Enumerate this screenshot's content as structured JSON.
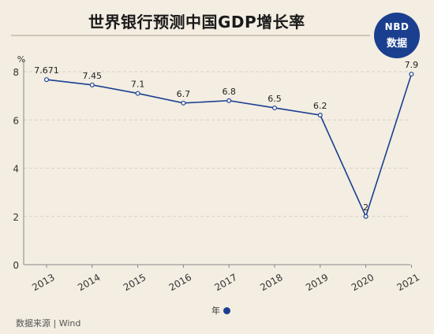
{
  "header": {
    "title": "世界银行预测中国GDP增长率",
    "badge_top": "NBD",
    "badge_bottom": "数据"
  },
  "footer": {
    "source": "数据来源 | Wind"
  },
  "colors": {
    "line": "#1b3f8f",
    "background": "#f3ede2",
    "grid": "#d8d2c6"
  },
  "chart_data": {
    "type": "line",
    "title": "世界银行预测中国GDP增长率",
    "ylabel": "%",
    "xlabel": "",
    "ylim": [
      0,
      8
    ],
    "yticks": [
      0,
      2,
      4,
      6,
      8
    ],
    "grid": true,
    "legend": "bottom",
    "categories": [
      "2013",
      "2014",
      "2015",
      "2016",
      "2017",
      "2018",
      "2019",
      "2020",
      "2021"
    ],
    "series": [
      {
        "name": "年",
        "values": [
          7.671,
          7.45,
          7.1,
          6.7,
          6.8,
          6.5,
          6.2,
          2,
          7.9
        ],
        "labels": [
          "7.671",
          "7.45",
          "7.1",
          "6.7",
          "6.8",
          "6.5",
          "6.2",
          "2",
          "7.9"
        ]
      }
    ]
  }
}
